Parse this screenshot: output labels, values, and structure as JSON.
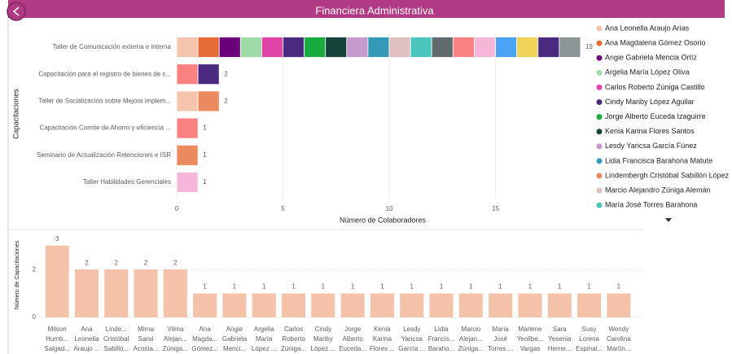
{
  "header": {
    "title": "Financiera Administrativa"
  },
  "chart_data": [
    {
      "type": "stacked-bar-horizontal",
      "categories": [
        "Taller de Comunicación externa e interna",
        "Capacitación para el registro de bienes de c...",
        "Taller de Socialización sobre Mejora implem...",
        "Capacitación Comité de Ahorro y eficiencia ...",
        "Seminario de Actualización Retenciones e ISR",
        "Taller Habilidades Gerenciales"
      ],
      "y_label": "Capacitaciones",
      "x_label": "Número de Colaboradores",
      "xlim": [
        0,
        19.5
      ],
      "xticks": [
        0,
        5,
        10,
        15
      ],
      "totals": [
        19,
        2,
        2,
        1,
        1,
        1
      ],
      "series": [
        {
          "name": "Ana Leonella Araujo Arias",
          "color": "#F5C4AF",
          "values": [
            1,
            null,
            1,
            null,
            null,
            null
          ]
        },
        {
          "name": "Ana Magdalena Gómez Osorio",
          "color": "#E66C37",
          "values": [
            1,
            null,
            null,
            null,
            null,
            null
          ]
        },
        {
          "name": "Angie Gabriela Mencia Ortíz",
          "color": "#6B007B",
          "values": [
            1,
            null,
            null,
            null,
            null,
            null
          ]
        },
        {
          "name": "Argelia María López Oliva",
          "color": "#9FDBA8",
          "values": [
            1,
            null,
            null,
            null,
            null,
            null
          ]
        },
        {
          "name": "Carlos Roberto Zúniga Castillo",
          "color": "#E044A7",
          "values": [
            1,
            null,
            null,
            null,
            null,
            null
          ]
        },
        {
          "name": "Cindy Mariby López Aguilar",
          "color": "#4A2A7E",
          "values": [
            1,
            null,
            null,
            null,
            null,
            null
          ]
        },
        {
          "name": "Jorge Alberto Euceda Izaguirre",
          "color": "#1AAB40",
          "values": [
            1,
            null,
            null,
            null,
            null,
            null
          ]
        },
        {
          "name": "Kenia Karina Flores Santos",
          "color": "#15433A",
          "values": [
            1,
            null,
            null,
            null,
            null,
            null
          ]
        },
        {
          "name": "Lesdy Yaricsa García Fúnez",
          "color": "#C49BCB",
          "values": [
            1,
            null,
            null,
            null,
            null,
            null
          ]
        },
        {
          "name": "Lidia Francisca Barahona Matute",
          "color": "#3599B8",
          "values": [
            1,
            null,
            null,
            null,
            null,
            null
          ]
        },
        {
          "name": "Lindembergh Cristóbal Sabillón López",
          "color": "#EB895F",
          "values": [
            null,
            null,
            1,
            null,
            1,
            null
          ]
        },
        {
          "name": "Marcio Alejandro Zúniga Alemán",
          "color": "#DFBFBF",
          "values": [
            1,
            null,
            null,
            null,
            null,
            null
          ]
        },
        {
          "name": "María José Torres Barahona",
          "color": "#4AC5BB",
          "values": [
            1,
            null,
            null,
            null,
            null,
            null
          ]
        },
        {
          "name": null,
          "color": "#5F6B6D",
          "values": [
            1,
            null,
            null,
            null,
            null,
            null
          ]
        },
        {
          "name": null,
          "color": "#FB8281",
          "values": [
            1,
            1,
            null,
            1,
            null,
            null
          ]
        },
        {
          "name": null,
          "color": "#F5B6DA",
          "values": [
            1,
            null,
            null,
            null,
            null,
            1
          ]
        },
        {
          "name": null,
          "color": "#4AA3F5",
          "values": [
            1,
            null,
            null,
            null,
            null,
            null
          ]
        },
        {
          "name": null,
          "color": "#F2D35A",
          "values": [
            1,
            null,
            null,
            null,
            null,
            null
          ]
        },
        {
          "name": null,
          "color": "#4A2A7E",
          "values": [
            1,
            1,
            null,
            null,
            null,
            null
          ]
        },
        {
          "name": null,
          "color": "#8D9496",
          "values": [
            1,
            null,
            null,
            null,
            null,
            null
          ]
        }
      ]
    },
    {
      "type": "bar",
      "y_label": "Número de Capacitaciones",
      "categories": [
        [
          "Milson",
          "Humb...",
          "Salgad..."
        ],
        [
          "Ana",
          "Leonella",
          "Araujo ..."
        ],
        [
          "Linde...",
          "Cristóbal",
          "Sabilló..."
        ],
        [
          "Mirna",
          "Saraí",
          "Acosta..."
        ],
        [
          "Vilma",
          "Alejan...",
          "Zúniga..."
        ],
        [
          "Ana",
          "Magda...",
          "Gómez..."
        ],
        [
          "Angie",
          "Gabriela",
          "Menci..."
        ],
        [
          "Argelia",
          "María",
          "López ..."
        ],
        [
          "Carlos",
          "Roberto",
          "Zúniga..."
        ],
        [
          "Cindy",
          "Mariby",
          "López ..."
        ],
        [
          "Jorge",
          "Alberto",
          "Euceda..."
        ],
        [
          "Kenia",
          "Karina",
          "Flores ..."
        ],
        [
          "Lesdy",
          "Yaricsa",
          "García ..."
        ],
        [
          "Lidia",
          "Francis...",
          "Baraho..."
        ],
        [
          "Marcio",
          "Alejan...",
          "Zúniga..."
        ],
        [
          "María",
          "José",
          "Torres ..."
        ],
        [
          "Marlene",
          "Yeolibe...",
          "Vargas"
        ],
        [
          "Sara",
          "Yesenia",
          "Herrer..."
        ],
        [
          "Susy",
          "Lorena",
          "Espinal..."
        ],
        [
          "Wendy",
          "Carolina",
          "Martín..."
        ]
      ],
      "values": [
        3,
        2,
        2,
        2,
        2,
        1,
        1,
        1,
        1,
        1,
        1,
        1,
        1,
        1,
        1,
        1,
        1,
        1,
        1,
        1
      ],
      "color": "#F4C2A9",
      "ylim": [
        0,
        3.4
      ],
      "yticks": [
        0,
        2
      ],
      "grid": true
    }
  ]
}
